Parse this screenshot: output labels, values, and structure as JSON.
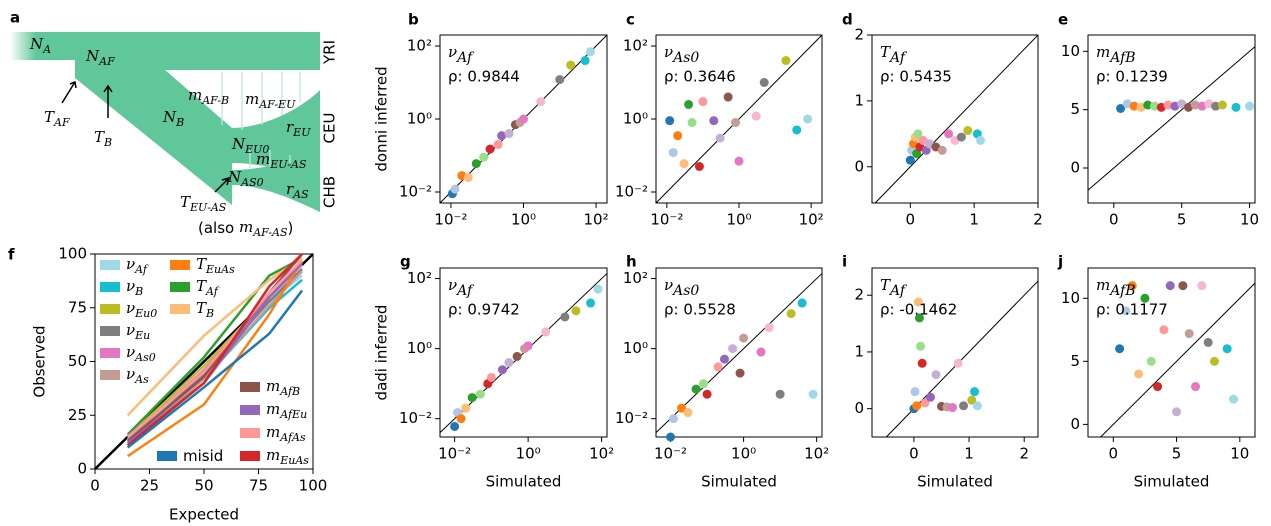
{
  "diagram": {
    "panel_label": "a",
    "labels": [
      {
        "text": "N",
        "sub": "A"
      },
      {
        "text": "N",
        "sub": "AF"
      },
      {
        "text": "T",
        "sub": "AF"
      },
      {
        "text": "T",
        "sub": "B"
      },
      {
        "text": "N",
        "sub": "B"
      },
      {
        "text": "m",
        "sub": "AF-B"
      },
      {
        "text": "m",
        "sub": "AF-EU"
      },
      {
        "text": "r",
        "sub": "EU"
      },
      {
        "text": "N",
        "sub": "EU0"
      },
      {
        "text": "m",
        "sub": "EU-AS"
      },
      {
        "text": "N",
        "sub": "AS0"
      },
      {
        "text": "r",
        "sub": "AS"
      },
      {
        "text": "T",
        "sub": "EU-AS"
      },
      {
        "prefix": "(also ",
        "text": "m",
        "sub": "AF-AS",
        "suffix": ")"
      }
    ],
    "populations": [
      "YRI",
      "CEU",
      "CHB"
    ]
  },
  "chart_data": [
    {
      "type": "scatter",
      "panel_label": "b",
      "title": "ν",
      "title_sub": "Af",
      "annotation": "ρ: 0.9844",
      "ylabel": "donni inferred",
      "xlog": true,
      "ylog": true,
      "xlim": [
        0.005,
        200
      ],
      "ylim": [
        0.005,
        200
      ],
      "xticks": [
        {
          "value": 0.01,
          "label": "10⁻²"
        },
        {
          "value": 1,
          "label": "10⁰"
        },
        {
          "value": 100,
          "label": "10²"
        }
      ],
      "yticks": [
        {
          "value": 0.01,
          "label": "10⁻²"
        },
        {
          "value": 1,
          "label": "10⁰"
        },
        {
          "value": 100,
          "label": "10²"
        }
      ],
      "diagonal": true,
      "x": [
        0.011,
        0.013,
        0.02,
        0.03,
        0.05,
        0.08,
        0.12,
        0.2,
        0.25,
        0.4,
        0.6,
        0.8,
        1,
        3,
        10,
        20,
        50,
        70
      ],
      "values": [
        0.009,
        0.012,
        0.028,
        0.025,
        0.06,
        0.09,
        0.15,
        0.2,
        0.35,
        0.4,
        0.7,
        0.8,
        1,
        3,
        12,
        30,
        40,
        70
      ],
      "colors": [
        "#1f77b4",
        "#aec7e8",
        "#ff7f0e",
        "#ffbb78",
        "#2ca02c",
        "#98df8a",
        "#d62728",
        "#ff9896",
        "#9467bd",
        "#c5b0d5",
        "#8c564b",
        "#c49c94",
        "#e377c2",
        "#f7b6d2",
        "#7f7f7f",
        "#bcbd22",
        "#17becf",
        "#9edae5"
      ]
    },
    {
      "type": "scatter",
      "panel_label": "c",
      "title": "ν",
      "title_sub": "As0",
      "annotation": "ρ: 0.3646",
      "xlog": true,
      "ylog": true,
      "xlim": [
        0.005,
        200
      ],
      "ylim": [
        0.005,
        200
      ],
      "xticks": [
        {
          "value": 0.01,
          "label": "10⁻²"
        },
        {
          "value": 1,
          "label": "10⁰"
        },
        {
          "value": 100,
          "label": "10²"
        }
      ],
      "yticks": [
        {
          "value": 0.01,
          "label": "10⁻²"
        },
        {
          "value": 1,
          "label": "10⁰"
        },
        {
          "value": 100,
          "label": "10²"
        }
      ],
      "diagonal": true,
      "x": [
        0.012,
        0.015,
        0.02,
        0.03,
        0.04,
        0.05,
        0.08,
        0.1,
        0.2,
        0.3,
        0.5,
        0.8,
        1,
        3,
        5,
        20,
        40,
        80
      ],
      "values": [
        0.9,
        0.12,
        0.35,
        0.06,
        2.5,
        0.8,
        0.05,
        3,
        0.9,
        0.3,
        4,
        0.8,
        0.07,
        1.2,
        10,
        40,
        0.5,
        1
      ],
      "colors": [
        "#1f77b4",
        "#aec7e8",
        "#ff7f0e",
        "#ffbb78",
        "#2ca02c",
        "#98df8a",
        "#d62728",
        "#ff9896",
        "#9467bd",
        "#c5b0d5",
        "#8c564b",
        "#c49c94",
        "#e377c2",
        "#f7b6d2",
        "#7f7f7f",
        "#bcbd22",
        "#17becf",
        "#9edae5"
      ]
    },
    {
      "type": "scatter",
      "panel_label": "d",
      "title": "T",
      "title_sub": "Af",
      "annotation": "ρ: 0.5435",
      "xlim": [
        -0.6,
        2.0
      ],
      "ylim": [
        -0.55,
        2.0
      ],
      "xticks": [
        0,
        1,
        2
      ],
      "yticks": [
        0,
        1,
        2
      ],
      "diagonal": true,
      "x": [
        0,
        0.02,
        0.05,
        0.08,
        0.1,
        0.12,
        0.15,
        0.2,
        0.25,
        0.3,
        0.4,
        0.5,
        0.6,
        0.7,
        0.8,
        0.9,
        1.05,
        1.1
      ],
      "values": [
        0.1,
        0.25,
        0.35,
        0.45,
        0.2,
        0.5,
        0.3,
        0.4,
        0.25,
        0.35,
        0.3,
        0.25,
        0.5,
        0.4,
        0.45,
        0.55,
        0.5,
        0.4
      ],
      "colors": [
        "#1f77b4",
        "#aec7e8",
        "#ff7f0e",
        "#ffbb78",
        "#2ca02c",
        "#98df8a",
        "#d62728",
        "#ff9896",
        "#9467bd",
        "#c5b0d5",
        "#8c564b",
        "#c49c94",
        "#e377c2",
        "#f7b6d2",
        "#7f7f7f",
        "#bcbd22",
        "#17becf",
        "#9edae5"
      ]
    },
    {
      "type": "scatter",
      "panel_label": "e",
      "title": "m",
      "title_sub": "AfB",
      "annotation": "ρ: 0.1239",
      "xlim": [
        -1.9,
        10.4
      ],
      "ylim": [
        -3,
        11.4
      ],
      "xticks": [
        0,
        5,
        10
      ],
      "yticks": [
        0,
        5,
        10
      ],
      "diagonal": true,
      "x": [
        0.5,
        1,
        1.5,
        2,
        2.5,
        3,
        3.5,
        4,
        4.5,
        5,
        5.5,
        6,
        6.5,
        7,
        7.5,
        8,
        9,
        10
      ],
      "values": [
        5.1,
        5.5,
        5.3,
        5.2,
        5.4,
        5.3,
        5.2,
        5.4,
        5.3,
        5.5,
        5.2,
        5.4,
        5.3,
        5.5,
        5.3,
        5.4,
        5.2,
        5.3
      ],
      "colors": [
        "#1f77b4",
        "#aec7e8",
        "#ff7f0e",
        "#ffbb78",
        "#2ca02c",
        "#98df8a",
        "#d62728",
        "#ff9896",
        "#9467bd",
        "#c5b0d5",
        "#8c564b",
        "#c49c94",
        "#e377c2",
        "#f7b6d2",
        "#7f7f7f",
        "#bcbd22",
        "#17becf",
        "#9edae5"
      ]
    },
    {
      "type": "line",
      "panel_label": "f",
      "xlabel": "Expected",
      "ylabel": "Observed",
      "xlim": [
        0,
        100
      ],
      "ylim": [
        0,
        100
      ],
      "xticks": [
        0,
        25,
        50,
        75,
        100
      ],
      "yticks": [
        0,
        25,
        50,
        75,
        100
      ],
      "diagonal": true,
      "x": [
        15,
        50,
        80,
        95
      ],
      "series": [
        {
          "name": "ν",
          "name_sub": "Af",
          "color": "#9edae5",
          "values": [
            12,
            45,
            78,
            90
          ]
        },
        {
          "name": "ν",
          "name_sub": "B",
          "color": "#17becf",
          "values": [
            13,
            42,
            75,
            88
          ]
        },
        {
          "name": "ν",
          "name_sub": "Eu0",
          "color": "#bcbd22",
          "values": [
            15,
            48,
            80,
            95
          ]
        },
        {
          "name": "ν",
          "name_sub": "Eu",
          "color": "#7f7f7f",
          "values": [
            12,
            44,
            78,
            93
          ]
        },
        {
          "name": "ν",
          "name_sub": "As0",
          "color": "#e377c2",
          "values": [
            14,
            46,
            80,
            95
          ]
        },
        {
          "name": "ν",
          "name_sub": "As",
          "color": "#c49c94",
          "values": [
            11,
            42,
            76,
            92
          ]
        },
        {
          "name": "T",
          "name_sub": "EuAs",
          "color": "#ff7f0e",
          "values": [
            6,
            30,
            72,
            97
          ]
        },
        {
          "name": "T",
          "name_sub": "Af",
          "color": "#2ca02c",
          "values": [
            16,
            52,
            90,
            98
          ]
        },
        {
          "name": "T",
          "name_sub": "B",
          "color": "#ffbb78",
          "values": [
            25,
            62,
            88,
            98
          ]
        },
        {
          "name": "m",
          "name_sub": "AfB",
          "color": "#8c564b",
          "values": [
            13,
            43,
            82,
            100
          ]
        },
        {
          "name": "m",
          "name_sub": "AfEu",
          "color": "#9467bd",
          "values": [
            12,
            40,
            80,
            96
          ]
        },
        {
          "name": "m",
          "name_sub": "AfAs",
          "color": "#ff9896",
          "values": [
            15,
            45,
            82,
            97
          ]
        },
        {
          "name": "m",
          "name_sub": "EuAs",
          "color": "#d62728",
          "values": [
            11,
            40,
            85,
            100
          ]
        },
        {
          "name": "misid",
          "color": "#1f77b4",
          "values": [
            10,
            38,
            63,
            83
          ]
        }
      ]
    },
    {
      "type": "scatter",
      "panel_label": "g",
      "title": "ν",
      "title_sub": "Af",
      "annotation": "ρ: 0.9742",
      "ylabel": "dadi inferred",
      "xlabel": "Simulated",
      "xlog": true,
      "ylog": true,
      "xlim": [
        0.004,
        140
      ],
      "ylim": [
        0.003,
        200
      ],
      "xticks": [
        {
          "value": 0.01,
          "label": "10⁻²"
        },
        {
          "value": 1,
          "label": "10⁰"
        },
        {
          "value": 100,
          "label": "10²"
        }
      ],
      "yticks": [
        {
          "value": 0.01,
          "label": "10⁻²"
        },
        {
          "value": 1,
          "label": "10⁰"
        },
        {
          "value": 100,
          "label": "10²"
        }
      ],
      "diagonal": true,
      "x": [
        0.01,
        0.012,
        0.015,
        0.02,
        0.03,
        0.05,
        0.08,
        0.1,
        0.2,
        0.3,
        0.5,
        0.8,
        1,
        3,
        10,
        20,
        50,
        80
      ],
      "values": [
        0.006,
        0.015,
        0.01,
        0.02,
        0.04,
        0.05,
        0.1,
        0.15,
        0.25,
        0.4,
        0.6,
        1,
        1.2,
        3,
        8,
        12,
        20,
        50
      ],
      "colors": [
        "#1f77b4",
        "#aec7e8",
        "#ff7f0e",
        "#ffbb78",
        "#2ca02c",
        "#98df8a",
        "#d62728",
        "#ff9896",
        "#9467bd",
        "#c5b0d5",
        "#8c564b",
        "#c49c94",
        "#e377c2",
        "#f7b6d2",
        "#7f7f7f",
        "#bcbd22",
        "#17becf",
        "#9edae5"
      ]
    },
    {
      "type": "scatter",
      "panel_label": "h",
      "title": "ν",
      "title_sub": "As0",
      "annotation": "ρ: 0.5528",
      "xlabel": "Simulated",
      "xlog": true,
      "ylog": true,
      "xlim": [
        0.004,
        140
      ],
      "ylim": [
        0.003,
        200
      ],
      "xticks": [
        {
          "value": 0.01,
          "label": "10⁻²"
        },
        {
          "value": 1,
          "label": "10⁰"
        },
        {
          "value": 100,
          "label": "10²"
        }
      ],
      "yticks": [
        {
          "value": 0.01,
          "label": "10⁻²"
        },
        {
          "value": 1,
          "label": "10⁰"
        },
        {
          "value": 100,
          "label": "10²"
        }
      ],
      "diagonal": true,
      "x": [
        0.01,
        0.012,
        0.02,
        0.03,
        0.05,
        0.08,
        0.1,
        0.2,
        0.3,
        0.5,
        0.8,
        1,
        3,
        5,
        10,
        20,
        40,
        80
      ],
      "values": [
        0.003,
        0.01,
        0.02,
        0.015,
        0.07,
        0.1,
        0.05,
        0.3,
        0.5,
        1,
        0.2,
        2,
        0.8,
        4,
        0.05,
        10,
        20,
        0.05
      ],
      "colors": [
        "#1f77b4",
        "#aec7e8",
        "#ff7f0e",
        "#ffbb78",
        "#2ca02c",
        "#98df8a",
        "#d62728",
        "#ff9896",
        "#9467bd",
        "#c5b0d5",
        "#8c564b",
        "#c49c94",
        "#e377c2",
        "#f7b6d2",
        "#7f7f7f",
        "#bcbd22",
        "#17becf",
        "#9edae5"
      ]
    },
    {
      "type": "scatter",
      "panel_label": "i",
      "title": "T",
      "title_sub": "Af",
      "annotation": "ρ: -0.1462",
      "xlabel": "Simulated",
      "xlim": [
        -0.76,
        2.25
      ],
      "ylim": [
        -0.5,
        2.48
      ],
      "xticks": [
        0,
        1,
        2
      ],
      "yticks": [
        0,
        1,
        2
      ],
      "diagonal": true,
      "x": [
        0,
        0.02,
        0.05,
        0.08,
        0.1,
        0.12,
        0.15,
        0.2,
        0.3,
        0.4,
        0.5,
        0.6,
        0.7,
        0.8,
        0.9,
        1.05,
        1.1,
        1.15
      ],
      "values": [
        0,
        0.3,
        0.05,
        1.88,
        1.6,
        1.1,
        0.8,
        0.1,
        0.2,
        0.6,
        0.04,
        0.03,
        0.02,
        0.8,
        0.05,
        0.15,
        0.3,
        0.05
      ],
      "colors": [
        "#1f77b4",
        "#aec7e8",
        "#ff7f0e",
        "#ffbb78",
        "#2ca02c",
        "#98df8a",
        "#d62728",
        "#ff9896",
        "#9467bd",
        "#c5b0d5",
        "#8c564b",
        "#c49c94",
        "#e377c2",
        "#f7b6d2",
        "#7f7f7f",
        "#bcbd22",
        "#17becf",
        "#9edae5"
      ]
    },
    {
      "type": "scatter",
      "panel_label": "j",
      "title": "m",
      "title_sub": "AfB",
      "annotation": "ρ: 0.1177",
      "xlabel": "Simulated",
      "xlim": [
        -2,
        11.2
      ],
      "ylim": [
        -1,
        12.4
      ],
      "xticks": [
        0,
        5,
        10
      ],
      "yticks": [
        0,
        5,
        10
      ],
      "diagonal": true,
      "x": [
        0.5,
        1,
        1.5,
        2,
        2.5,
        3,
        3.5,
        4,
        4.5,
        5,
        5.5,
        6,
        6.5,
        7,
        7.5,
        8,
        9,
        9.5
      ],
      "values": [
        6,
        9,
        11,
        4,
        10,
        5,
        3,
        7.5,
        11,
        1,
        11,
        7.2,
        3,
        11,
        6.5,
        5,
        6,
        2
      ],
      "colors": [
        "#1f77b4",
        "#aec7e8",
        "#ff7f0e",
        "#ffbb78",
        "#2ca02c",
        "#98df8a",
        "#d62728",
        "#ff9896",
        "#9467bd",
        "#c5b0d5",
        "#8c564b",
        "#c49c94",
        "#e377c2",
        "#f7b6d2",
        "#7f7f7f",
        "#bcbd22",
        "#17becf",
        "#9edae5"
      ]
    }
  ]
}
